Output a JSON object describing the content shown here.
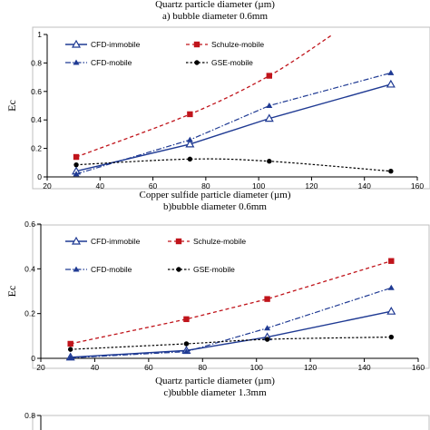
{
  "captions": {
    "a_axis": "Quartz particle diameter (µm)",
    "a_title": "a) bubble diameter 0.6mm",
    "b_axis": "Copper sulfide particle diameter (µm)",
    "b_title": "b)bubble diameter 0.6mm",
    "c_axis": "Quartz particle diameter (µm)",
    "c_title": "c)bubble diameter 1.3mm"
  },
  "colors": {
    "cfd_immobile": "#1f3a93",
    "schulze": "#c0141b",
    "cfd_mobile": "#1f3a93",
    "gse": "#000000"
  },
  "chart_data": [
    {
      "type": "line",
      "ylabel": "Ec",
      "xlim": [
        20,
        160
      ],
      "ylim": [
        0,
        1
      ],
      "xticks": [
        "20",
        "40",
        "60",
        "80",
        "100",
        "120",
        "140",
        "160"
      ],
      "yticks": [
        "0",
        "0.2",
        "0.4",
        "0.6",
        "0.8",
        "1"
      ],
      "legend": "top-left",
      "series": [
        {
          "name": "CFD-immobile",
          "x": [
            31,
            74,
            104,
            150
          ],
          "values": [
            0.04,
            0.23,
            0.41,
            0.65
          ]
        },
        {
          "name": "Schulze-mobile",
          "x": [
            31,
            74,
            104,
            128
          ],
          "values": [
            0.14,
            0.44,
            0.71,
            1.0
          ]
        },
        {
          "name": "CFD-mobile",
          "x": [
            31,
            74,
            104,
            150
          ],
          "values": [
            0.02,
            0.26,
            0.5,
            0.73
          ]
        },
        {
          "name": "GSE-mobile",
          "x": [
            31,
            74,
            104,
            150
          ],
          "values": [
            0.085,
            0.125,
            0.11,
            0.04
          ]
        }
      ]
    },
    {
      "type": "line",
      "ylabel": "Ec",
      "xlim": [
        20,
        160
      ],
      "ylim": [
        0,
        0.6
      ],
      "xticks": [
        "20",
        "40",
        "60",
        "80",
        "100",
        "120",
        "140",
        "160"
      ],
      "yticks": [
        "0",
        "0.2",
        "0.4",
        "0.6"
      ],
      "legend": "top-left",
      "series": [
        {
          "name": "CFD-immobile",
          "x": [
            31,
            74,
            104,
            150
          ],
          "values": [
            0.005,
            0.035,
            0.095,
            0.21
          ]
        },
        {
          "name": "Schulze-mobile",
          "x": [
            31,
            74,
            104,
            150
          ],
          "values": [
            0.065,
            0.175,
            0.265,
            0.435
          ]
        },
        {
          "name": "CFD-mobile",
          "x": [
            31,
            74,
            104,
            150
          ],
          "values": [
            0.002,
            0.03,
            0.135,
            0.315
          ]
        },
        {
          "name": "GSE-mobile",
          "x": [
            31,
            74,
            104,
            150
          ],
          "values": [
            0.04,
            0.065,
            0.085,
            0.095
          ]
        }
      ]
    },
    {
      "type": "line",
      "ylabel": "",
      "xlim": [
        20,
        160
      ],
      "ylim": [
        0,
        0.8
      ],
      "yticks": [
        "0.8"
      ],
      "series": []
    }
  ]
}
